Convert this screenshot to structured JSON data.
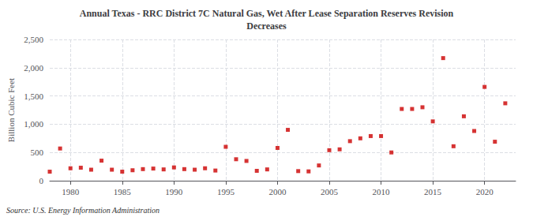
{
  "chart_data": {
    "type": "scatter",
    "title": "Annual Texas - RRC District 7C Natural Gas, Wet After Lease Separation Reserves Revision\nDecreases",
    "ylabel": "Billion Cubic Feet",
    "source": "Source: U.S. Energy Information Administration",
    "color": "#cc0000",
    "marker": "square",
    "grid": true,
    "xlim": [
      1978,
      2023
    ],
    "xticks": [
      1980,
      1985,
      1990,
      1995,
      2000,
      2005,
      2010,
      2015,
      2020
    ],
    "ylim": [
      0,
      2500
    ],
    "yticks": [
      0,
      500,
      {
        "value": 1000,
        "label": "1,000"
      },
      {
        "value": 1500,
        "label": "1,500"
      },
      {
        "value": 2000,
        "label": "2,000"
      },
      {
        "value": 2500,
        "label": "2,500"
      }
    ],
    "x": [
      1978,
      1979,
      1980,
      1981,
      1982,
      1983,
      1984,
      1985,
      1986,
      1987,
      1988,
      1989,
      1990,
      1991,
      1992,
      1993,
      1994,
      1995,
      1996,
      1997,
      1998,
      1999,
      2000,
      2001,
      2002,
      2003,
      2004,
      2005,
      2006,
      2007,
      2008,
      2009,
      2010,
      2011,
      2012,
      2013,
      2014,
      2015,
      2016,
      2017,
      2018,
      2019,
      2020,
      2021,
      2022
    ],
    "values": [
      160,
      570,
      220,
      230,
      195,
      355,
      195,
      160,
      185,
      205,
      215,
      200,
      235,
      205,
      195,
      220,
      180,
      600,
      380,
      350,
      175,
      200,
      580,
      900,
      170,
      165,
      270,
      540,
      555,
      700,
      750,
      790,
      790,
      500,
      1270,
      1270,
      1300,
      1050,
      2170,
      610,
      1140,
      880,
      1660,
      690,
      1370
    ]
  }
}
